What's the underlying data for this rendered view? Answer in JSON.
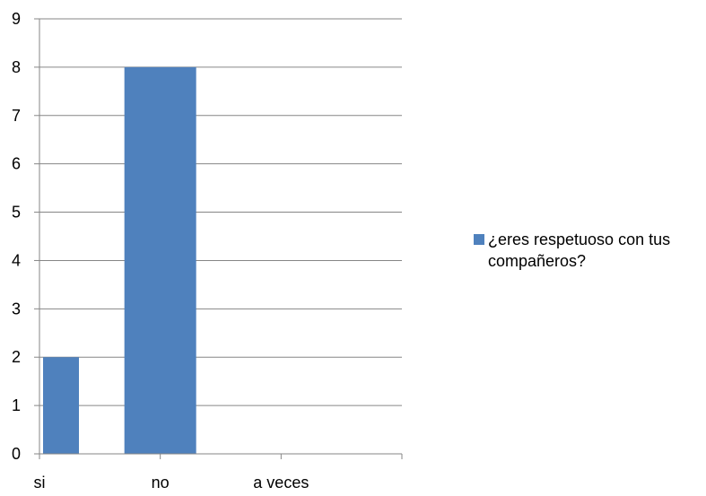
{
  "chart_data": {
    "type": "bar",
    "categories": [
      "si",
      "no",
      "a veces"
    ],
    "series": [
      {
        "name": "¿eres respetuoso con tus compañeros?",
        "values": [
          2,
          8,
          0
        ],
        "color": "#4F81BD"
      }
    ],
    "ylim": [
      0,
      9
    ],
    "yticks": [
      0,
      1,
      2,
      3,
      4,
      5,
      6,
      7,
      8,
      9
    ],
    "grid": true,
    "legend_position": "right"
  }
}
